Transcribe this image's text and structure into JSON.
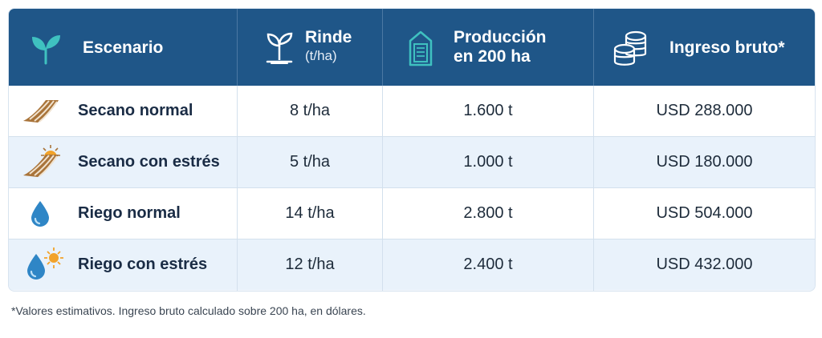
{
  "header": {
    "scenario_label": "Escenario",
    "yield_label": "Rinde",
    "yield_unit": "(t/ha)",
    "production_label_line1": "Producción",
    "production_label_line2": "en 200 ha",
    "income_label": "Ingreso bruto*"
  },
  "rows": [
    {
      "scenario": "Secano normal",
      "yield": "8 t/ha",
      "production": "1.600 t",
      "income": "USD 288.000",
      "icon": "field-icon"
    },
    {
      "scenario": "Secano con estrés",
      "yield": "5 t/ha",
      "production": "1.000 t",
      "income": "USD 180.000",
      "icon": "field-sun-icon"
    },
    {
      "scenario": "Riego normal",
      "yield": "14 t/ha",
      "production": "2.800 t",
      "income": "USD 504.000",
      "icon": "water-drop-icon"
    },
    {
      "scenario": "Riego con estrés",
      "yield": "12 t/ha",
      "production": "2.400 t",
      "income": "USD 432.000",
      "icon": "water-drop-sun-icon"
    }
  ],
  "footnote": "*Valores estimativos. Ingreso bruto calculado sobre 200 ha, en dólares.",
  "colors": {
    "header_bg": "#1f5688",
    "accent_teal": "#3fc1c0",
    "row_alt": "#e9f2fb",
    "field_brown": "#a9743a",
    "drop_blue": "#2f86c6",
    "sun_orange": "#f2a32a"
  }
}
